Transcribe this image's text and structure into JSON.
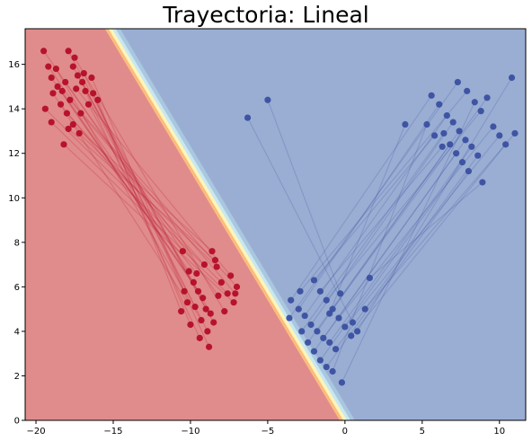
{
  "chart_data": {
    "type": "scatter",
    "title": "Trayectoria: Lineal",
    "xlabel": "",
    "ylabel": "",
    "xlim": [
      -20.7,
      11.7
    ],
    "ylim": [
      0,
      17.6
    ],
    "xticks": [
      -20,
      -15,
      -10,
      -5,
      0,
      5,
      10
    ],
    "yticks": [
      0,
      2,
      4,
      6,
      8,
      10,
      12,
      14,
      16
    ],
    "grid": false,
    "decision_boundary": {
      "type": "linear",
      "line_points": [
        [
          -15.6,
          17.6
        ],
        [
          -0.4,
          0
        ]
      ],
      "left_region_color": "#e08c8c",
      "right_region_color": "#9aaed3",
      "transition_colors": [
        "#fbbd7d",
        "#fff5b8",
        "#c9e7f0",
        "#a9c7df"
      ]
    },
    "colors": {
      "red_series": "#b40d28",
      "blue_series": "#3a4fa0"
    },
    "series": [
      {
        "color": "#b40d28",
        "points": [
          [
            -19.5,
            16.6
          ],
          [
            -19.2,
            15.9
          ],
          [
            -19.0,
            15.4
          ],
          [
            -18.6,
            15.0
          ],
          [
            -18.3,
            14.8
          ],
          [
            -17.9,
            16.6
          ],
          [
            -17.6,
            15.9
          ],
          [
            -17.3,
            15.5
          ],
          [
            -17.0,
            15.2
          ],
          [
            -16.8,
            14.8
          ],
          [
            -16.3,
            14.7
          ],
          [
            -16.0,
            14.4
          ],
          [
            -18.9,
            14.7
          ],
          [
            -18.4,
            14.2
          ],
          [
            -18.0,
            13.8
          ],
          [
            -17.6,
            13.3
          ],
          [
            -17.2,
            12.9
          ],
          [
            -19.4,
            14.0
          ],
          [
            -19.0,
            13.4
          ],
          [
            -18.2,
            12.4
          ],
          [
            -17.8,
            14.4
          ],
          [
            -17.4,
            14.9
          ],
          [
            -16.9,
            15.6
          ],
          [
            -16.6,
            14.2
          ],
          [
            -18.1,
            15.2
          ],
          [
            -17.5,
            16.3
          ],
          [
            -18.7,
            15.8
          ],
          [
            -16.4,
            15.4
          ],
          [
            -17.9,
            13.1
          ],
          [
            -17.1,
            13.8
          ]
        ]
      },
      {
        "color": "#b40d28",
        "points": [
          [
            -10.5,
            7.6
          ],
          [
            -10.1,
            6.7
          ],
          [
            -9.8,
            6.2
          ],
          [
            -9.5,
            5.8
          ],
          [
            -9.2,
            5.5
          ],
          [
            -9.0,
            5.0
          ],
          [
            -8.7,
            4.8
          ],
          [
            -8.5,
            4.4
          ],
          [
            -8.9,
            4.0
          ],
          [
            -9.4,
            3.7
          ],
          [
            -10.0,
            4.3
          ],
          [
            -10.6,
            4.9
          ],
          [
            -10.2,
            5.3
          ],
          [
            -9.6,
            6.6
          ],
          [
            -9.1,
            7.0
          ],
          [
            -8.6,
            7.6
          ],
          [
            -8.3,
            6.9
          ],
          [
            -8.0,
            6.2
          ],
          [
            -7.6,
            5.7
          ],
          [
            -7.2,
            5.3
          ],
          [
            -7.0,
            6.0
          ],
          [
            -7.4,
            6.5
          ],
          [
            -8.8,
            3.3
          ],
          [
            -9.7,
            5.1
          ],
          [
            -8.2,
            5.6
          ],
          [
            -7.8,
            4.9
          ],
          [
            -9.3,
            4.5
          ],
          [
            -10.4,
            5.8
          ],
          [
            -8.4,
            7.2
          ],
          [
            -7.1,
            5.7
          ]
        ]
      },
      {
        "color": "#3a4fa0",
        "points": [
          [
            5.6,
            14.6
          ],
          [
            6.1,
            14.2
          ],
          [
            6.6,
            13.7
          ],
          [
            7.0,
            13.4
          ],
          [
            7.4,
            13.0
          ],
          [
            7.8,
            12.6
          ],
          [
            8.2,
            12.3
          ],
          [
            8.6,
            11.9
          ],
          [
            6.4,
            12.9
          ],
          [
            6.8,
            12.4
          ],
          [
            7.2,
            12.0
          ],
          [
            7.6,
            11.6
          ],
          [
            8.0,
            11.2
          ],
          [
            5.3,
            13.3
          ],
          [
            5.8,
            12.8
          ],
          [
            6.3,
            12.3
          ],
          [
            8.8,
            13.9
          ],
          [
            9.2,
            14.5
          ],
          [
            9.6,
            13.2
          ],
          [
            10.0,
            12.8
          ],
          [
            10.4,
            12.4
          ],
          [
            10.8,
            15.4
          ],
          [
            11.0,
            12.9
          ],
          [
            8.9,
            10.7
          ],
          [
            7.3,
            15.2
          ],
          [
            7.9,
            14.8
          ],
          [
            8.4,
            14.3
          ],
          [
            3.9,
            13.3
          ],
          [
            -5.0,
            14.4
          ],
          [
            -6.3,
            13.6
          ]
        ]
      },
      {
        "color": "#3a4fa0",
        "points": [
          [
            -3.5,
            5.4
          ],
          [
            -3.0,
            5.0
          ],
          [
            -2.6,
            4.7
          ],
          [
            -2.2,
            4.3
          ],
          [
            -1.8,
            4.0
          ],
          [
            -1.4,
            3.7
          ],
          [
            -1.0,
            3.5
          ],
          [
            -0.6,
            3.2
          ],
          [
            -2.8,
            4.0
          ],
          [
            -2.4,
            3.5
          ],
          [
            -2.0,
            3.1
          ],
          [
            -1.6,
            2.7
          ],
          [
            -1.2,
            2.4
          ],
          [
            -0.8,
            2.2
          ],
          [
            -2.0,
            6.3
          ],
          [
            -1.6,
            5.8
          ],
          [
            -1.2,
            5.4
          ],
          [
            -0.8,
            5.0
          ],
          [
            -0.4,
            4.6
          ],
          [
            0.0,
            4.2
          ],
          [
            0.4,
            3.8
          ],
          [
            0.8,
            4.0
          ],
          [
            1.3,
            5.0
          ],
          [
            1.6,
            6.4
          ],
          [
            -3.6,
            4.6
          ],
          [
            -2.9,
            5.8
          ],
          [
            -0.2,
            1.7
          ],
          [
            -1.0,
            4.8
          ],
          [
            -0.3,
            5.7
          ],
          [
            0.5,
            4.4
          ]
        ]
      }
    ],
    "trajectories": [
      {
        "color": "#b40d28",
        "from_series": 0,
        "to_series": 1
      },
      {
        "color": "#3a4fa0",
        "from_series": 3,
        "to_series": 2
      }
    ]
  }
}
